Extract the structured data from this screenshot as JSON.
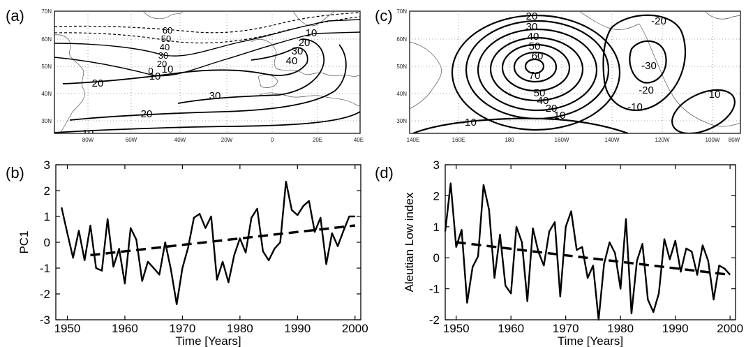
{
  "panels": {
    "a": {
      "label": "(a)"
    },
    "b": {
      "label": "(b)"
    },
    "c": {
      "label": "(c)"
    },
    "d": {
      "label": "(d)"
    }
  },
  "map_a": {
    "lat_ticks": [
      "70N",
      "60N",
      "50N",
      "40N",
      "30N"
    ],
    "lon_ticks": [
      "80W",
      "60W",
      "40W",
      "20W",
      "0",
      "20E",
      "40E"
    ],
    "contour_labels": [
      "60",
      "50",
      "40",
      "30",
      "20",
      "10",
      "0",
      "10",
      "20",
      "30",
      "40",
      "10",
      "20",
      "30",
      "20",
      "10"
    ]
  },
  "map_c": {
    "lat_ticks": [
      "70N",
      "60N",
      "50N",
      "40N",
      "30N"
    ],
    "lon_ticks": [
      "140E",
      "160E",
      "180",
      "160W",
      "140W",
      "120W",
      "100W",
      "80W"
    ],
    "contour_labels": [
      "20",
      "30",
      "40",
      "50",
      "60",
      "70",
      "50",
      "40",
      "20",
      "10",
      "-20",
      "-30",
      "-20",
      "-10",
      "10",
      "-10"
    ]
  },
  "chart_data": [
    {
      "type": "line",
      "panel": "(b)",
      "xlabel": "Time [Years]",
      "ylabel": "PC1",
      "xlim": [
        1948,
        2001
      ],
      "ylim": [
        -3,
        3
      ],
      "xticks": [
        "1950",
        "1960",
        "1970",
        "1980",
        "1990",
        "2000"
      ],
      "yticks": [
        "3",
        "2",
        "1",
        "0",
        "-1",
        "-2",
        "-3"
      ],
      "series": [
        {
          "style": "solid",
          "x": [
            1949,
            1950,
            1951,
            1952,
            1953,
            1954,
            1955,
            1956,
            1957,
            1958,
            1959,
            1960,
            1961,
            1962,
            1963,
            1964,
            1965,
            1966,
            1967,
            1968,
            1969,
            1970,
            1971,
            1972,
            1973,
            1974,
            1975,
            1976,
            1977,
            1978,
            1979,
            1980,
            1981,
            1982,
            1983,
            1984,
            1985,
            1986,
            1987,
            1988,
            1989,
            1990,
            1991,
            1992,
            1993,
            1994,
            1995,
            1996,
            1997,
            1998,
            1999,
            2000
          ],
          "values": [
            1.35,
            0.35,
            -0.6,
            0.45,
            -0.7,
            0.65,
            -1.0,
            -1.1,
            0.9,
            -0.95,
            -0.25,
            -1.6,
            0.55,
            0.1,
            -1.5,
            -0.75,
            -1.0,
            -1.25,
            0.0,
            -1.05,
            -2.4,
            -1.0,
            -0.2,
            0.95,
            1.1,
            0.55,
            1.0,
            -1.45,
            -0.75,
            -1.55,
            -0.5,
            0.15,
            -0.4,
            0.95,
            1.3,
            -0.35,
            -0.7,
            -0.25,
            0.0,
            2.35,
            1.25,
            1.05,
            1.4,
            1.6,
            0.4,
            0.95,
            -0.85,
            0.35,
            -0.15,
            0.45,
            1.0,
            1.0
          ]
        },
        {
          "style": "dashed",
          "x": [
            1954,
            2000
          ],
          "values": [
            -0.5,
            0.65
          ]
        }
      ]
    },
    {
      "type": "line",
      "panel": "(d)",
      "xlabel": "Time [Years]",
      "ylabel": "Aleutian Low index",
      "xlim": [
        1948,
        2001
      ],
      "ylim": [
        -2,
        3
      ],
      "xticks": [
        "1950",
        "1960",
        "1970",
        "1980",
        "1990",
        "2000"
      ],
      "yticks": [
        "3",
        "2",
        "1",
        "0",
        "-1",
        "-2"
      ],
      "series": [
        {
          "style": "solid",
          "x": [
            1948,
            1949,
            1950,
            1951,
            1952,
            1953,
            1954,
            1955,
            1956,
            1957,
            1958,
            1959,
            1960,
            1961,
            1962,
            1963,
            1964,
            1965,
            1966,
            1967,
            1968,
            1969,
            1970,
            1971,
            1972,
            1973,
            1974,
            1975,
            1976,
            1977,
            1978,
            1979,
            1980,
            1981,
            1982,
            1983,
            1984,
            1985,
            1986,
            1987,
            1988,
            1989,
            1990,
            1991,
            1992,
            1993,
            1994,
            1995,
            1996,
            1997,
            1998,
            1999,
            2000
          ],
          "values": [
            0.85,
            2.4,
            0.35,
            0.9,
            -1.45,
            -0.3,
            0.05,
            2.35,
            1.55,
            -0.65,
            0.75,
            -0.9,
            -1.15,
            1.0,
            0.5,
            -1.4,
            0.95,
            0.2,
            -0.25,
            0.85,
            1.15,
            -1.25,
            1.0,
            1.5,
            0.25,
            0.35,
            -0.65,
            -0.25,
            -2.0,
            -0.2,
            0.5,
            0.15,
            -1.0,
            1.25,
            -1.8,
            -0.1,
            0.45,
            -1.35,
            -1.75,
            -1.15,
            0.6,
            -0.05,
            0.55,
            -0.45,
            0.3,
            0.2,
            -0.55,
            0.4,
            -0.1,
            -1.35,
            -0.25,
            -0.35,
            -0.55
          ]
        },
        {
          "style": "dashed",
          "x": [
            1950,
            2000
          ],
          "values": [
            0.5,
            -0.55
          ]
        }
      ]
    }
  ]
}
